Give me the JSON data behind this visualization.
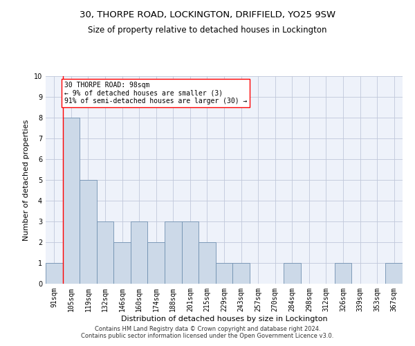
{
  "title": "30, THORPE ROAD, LOCKINGTON, DRIFFIELD, YO25 9SW",
  "subtitle": "Size of property relative to detached houses in Lockington",
  "xlabel": "Distribution of detached houses by size in Lockington",
  "ylabel": "Number of detached properties",
  "bar_color": "#ccd9e8",
  "bar_edge_color": "#7090b0",
  "categories": [
    "91sqm",
    "105sqm",
    "119sqm",
    "132sqm",
    "146sqm",
    "160sqm",
    "174sqm",
    "188sqm",
    "201sqm",
    "215sqm",
    "229sqm",
    "243sqm",
    "257sqm",
    "270sqm",
    "284sqm",
    "298sqm",
    "312sqm",
    "326sqm",
    "339sqm",
    "353sqm",
    "367sqm"
  ],
  "values": [
    1,
    8,
    5,
    3,
    2,
    3,
    2,
    3,
    3,
    2,
    1,
    1,
    0,
    0,
    1,
    0,
    0,
    1,
    0,
    0,
    1
  ],
  "ylim": [
    0,
    10
  ],
  "yticks": [
    0,
    1,
    2,
    3,
    4,
    5,
    6,
    7,
    8,
    9,
    10
  ],
  "annotation_text": "30 THORPE ROAD: 98sqm\n← 9% of detached houses are smaller (3)\n91% of semi-detached houses are larger (30) →",
  "background_color": "#eef2fa",
  "footer_text": "Contains HM Land Registry data © Crown copyright and database right 2024.\nContains public sector information licensed under the Open Government Licence v3.0.",
  "grid_color": "#c0c8da",
  "title_fontsize": 9.5,
  "subtitle_fontsize": 8.5,
  "xlabel_fontsize": 8,
  "ylabel_fontsize": 8,
  "tick_fontsize": 7,
  "annot_fontsize": 7,
  "footer_fontsize": 6
}
